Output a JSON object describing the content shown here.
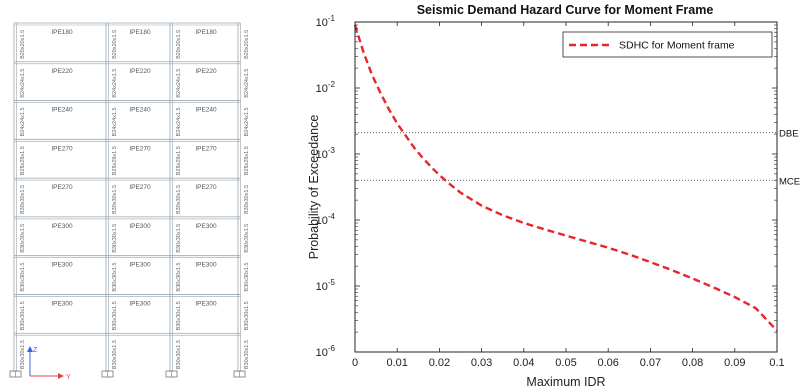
{
  "frame": {
    "beam_rows": [
      [
        "IPE180",
        "IPE180",
        "IPE180"
      ],
      [
        "IPE220",
        "IPE220",
        "IPE220"
      ],
      [
        "IPE240",
        "IPE240",
        "IPE240"
      ],
      [
        "IPE270",
        "IPE270",
        "IPE270"
      ],
      [
        "IPE270",
        "IPE270",
        "IPE270"
      ],
      [
        "IPE300",
        "IPE300",
        "IPE300"
      ],
      [
        "IPE300",
        "IPE300",
        "IPE300"
      ],
      [
        "IPE300",
        "IPE300",
        "IPE300"
      ]
    ],
    "column_rows": [
      "B20x20x1.5",
      "B24x24x1.5",
      "B24x24x1.5",
      "B28x28x1.5",
      "B30x30x1.5",
      "B30x30x1.5",
      "B30x30x1.5",
      "B30x30x1.5",
      "B30x30x1.5"
    ],
    "axis_icon": {
      "y_label": "Y",
      "z_label": "Z"
    },
    "colors": {
      "lines": "#9aa6b2",
      "axis_y": "#e04848",
      "axis_z": "#3a64d8"
    }
  },
  "chart_data": {
    "type": "line",
    "title": "Seismic Demand Hazard Curve for Moment Frame",
    "xlabel": "Maximum IDR",
    "ylabel": "Probability of Exceedance",
    "xlim": [
      0,
      0.1
    ],
    "ylim": [
      1e-06,
      0.1
    ],
    "yscale": "log",
    "grid": false,
    "legend_position": "top-right",
    "x_ticks": [
      "0",
      "0.01",
      "0.02",
      "0.03",
      "0.04",
      "0.05",
      "0.06",
      "0.07",
      "0.08",
      "0.09",
      "0.1"
    ],
    "y_ticks": [
      {
        "value": 1e-06,
        "base": "10",
        "exp": "-6"
      },
      {
        "value": 1e-05,
        "base": "10",
        "exp": "-5"
      },
      {
        "value": 0.0001,
        "base": "10",
        "exp": "-4"
      },
      {
        "value": 0.001,
        "base": "10",
        "exp": "-3"
      },
      {
        "value": 0.01,
        "base": "10",
        "exp": "-2"
      },
      {
        "value": 0.1,
        "base": "10",
        "exp": "-1"
      }
    ],
    "series": [
      {
        "name": "SDHC for Moment frame",
        "color": "#e8262a",
        "style": "dashed",
        "x": [
          0.0,
          0.002,
          0.004,
          0.006,
          0.008,
          0.01,
          0.012,
          0.014,
          0.016,
          0.018,
          0.02,
          0.022,
          0.025,
          0.03,
          0.035,
          0.04,
          0.045,
          0.05,
          0.055,
          0.06,
          0.065,
          0.07,
          0.075,
          0.08,
          0.085,
          0.09,
          0.095,
          0.1
        ],
        "y": [
          0.09,
          0.035,
          0.016,
          0.0085,
          0.0048,
          0.0029,
          0.0019,
          0.00125,
          0.00088,
          0.00064,
          0.00048,
          0.00037,
          0.00026,
          0.000165,
          0.000118,
          9e-05,
          7.2e-05,
          5.8e-05,
          4.7e-05,
          3.8e-05,
          3e-05,
          2.3e-05,
          1.75e-05,
          1.3e-05,
          9.5e-06,
          6.8e-06,
          4.6e-06,
          2.1e-06
        ]
      }
    ],
    "reference_lines": [
      {
        "label": "DBE",
        "y": 0.0021,
        "style": "dotted"
      },
      {
        "label": "MCE",
        "y": 0.0004,
        "style": "dotted"
      }
    ]
  }
}
